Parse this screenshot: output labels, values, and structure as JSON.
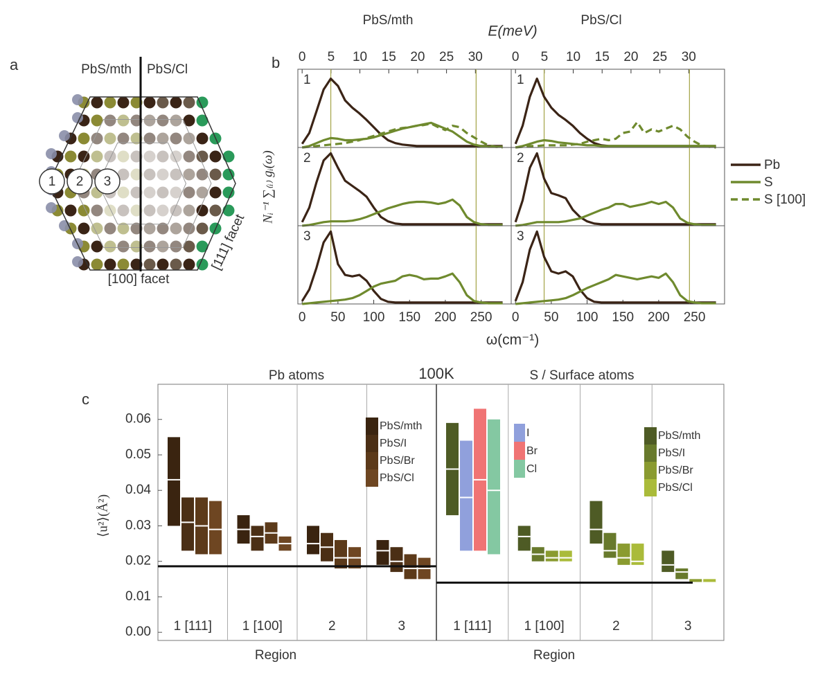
{
  "panel_labels": [
    "a",
    "b",
    "c"
  ],
  "diagram": {
    "left": "PbS/mth",
    "right": "PbS/Cl",
    "regions": [
      "1",
      "2",
      "3"
    ],
    "facet_100": "[100] facet",
    "facet_111": "[111] facet"
  },
  "chart_data": [
    {
      "type": "line",
      "top_axis_label": "E(meV)",
      "x_label": "ω(cm⁻¹)",
      "y_label": "Nᵢ⁻¹ ∑₍ᵢ₎ gᵢ(ω)",
      "x": [
        0,
        10,
        20,
        30,
        40,
        50,
        60,
        70,
        80,
        90,
        100,
        110,
        120,
        130,
        140,
        150,
        160,
        170,
        180,
        190,
        200,
        210,
        220,
        230,
        240,
        250,
        260,
        270,
        280
      ],
      "xlim": [
        -6,
        292
      ],
      "xticks": [
        0,
        50,
        100,
        150,
        200,
        250
      ],
      "x2lim": [
        -0.74,
        36.2
      ],
      "x2ticks": [
        0,
        5,
        10,
        15,
        20,
        25,
        30
      ],
      "ylim": [
        0,
        1.08
      ],
      "vlines": [
        40,
        243
      ],
      "vline_color": "#a8a850",
      "series": [
        {
          "name": "Pb",
          "color": "#3b2416",
          "dash": false
        },
        {
          "name": "S",
          "color": "#6f8a2e",
          "dash": false
        },
        {
          "name": "S [100]",
          "color": "#6f8a2e",
          "dash": true
        }
      ],
      "columns": [
        {
          "title": "PbS/mth",
          "panels": [
            {
              "label": "1",
              "values": [
                [
                  0.05,
                  0.2,
                  0.5,
                  0.8,
                  0.95,
                  0.85,
                  0.65,
                  0.55,
                  0.47,
                  0.38,
                  0.28,
                  0.18,
                  0.1,
                  0.06,
                  0.04,
                  0.03,
                  0.02,
                  0.02,
                  0.02,
                  0.02,
                  0.02,
                  0.02,
                  0.02,
                  0.02,
                  0.02,
                  0.02,
                  0.02,
                  0.02,
                  0.02
                ],
                [
                  0,
                  0.02,
                  0.06,
                  0.1,
                  0.13,
                  0.12,
                  0.1,
                  0.1,
                  0.11,
                  0.12,
                  0.14,
                  0.17,
                  0.2,
                  0.23,
                  0.26,
                  0.28,
                  0.3,
                  0.32,
                  0.34,
                  0.3,
                  0.26,
                  0.22,
                  0.15,
                  0.08,
                  0.04,
                  0.02,
                  0.01,
                  0.01,
                  0.01
                ],
                [
                  0,
                  0.01,
                  0.02,
                  0.03,
                  0.04,
                  0.05,
                  0.06,
                  0.08,
                  0.1,
                  0.13,
                  0.16,
                  0.19,
                  0.22,
                  0.25,
                  0.27,
                  0.28,
                  0.3,
                  0.31,
                  0.33,
                  0.28,
                  0.24,
                  0.3,
                  0.28,
                  0.2,
                  0.14,
                  0.08,
                  0.03,
                  0.01,
                  0
                ]
              ]
            },
            {
              "label": "2",
              "values": [
                [
                  0.05,
                  0.25,
                  0.6,
                  0.9,
                  1.0,
                  0.8,
                  0.62,
                  0.55,
                  0.48,
                  0.4,
                  0.25,
                  0.12,
                  0.06,
                  0.03,
                  0.02,
                  0.02,
                  0.02,
                  0.02,
                  0.02,
                  0.02,
                  0.02,
                  0.02,
                  0.02,
                  0.02,
                  0.02,
                  0.02,
                  0.02,
                  0.02,
                  0.02
                ],
                [
                  0,
                  0.01,
                  0.03,
                  0.05,
                  0.06,
                  0.06,
                  0.06,
                  0.07,
                  0.09,
                  0.12,
                  0.16,
                  0.2,
                  0.24,
                  0.27,
                  0.3,
                  0.32,
                  0.33,
                  0.33,
                  0.32,
                  0.3,
                  0.32,
                  0.36,
                  0.28,
                  0.12,
                  0.05,
                  0.02,
                  0.01,
                  0.01,
                  0.01
                ]
              ]
            },
            {
              "label": "3",
              "values": [
                [
                  0.04,
                  0.2,
                  0.5,
                  0.85,
                  1.0,
                  0.55,
                  0.4,
                  0.38,
                  0.4,
                  0.32,
                  0.18,
                  0.07,
                  0.03,
                  0.02,
                  0.02,
                  0.02,
                  0.02,
                  0.02,
                  0.02,
                  0.02,
                  0.02,
                  0.02,
                  0.02,
                  0.02,
                  0.02,
                  0.02,
                  0.02,
                  0.02,
                  0.02
                ],
                [
                  0,
                  0.01,
                  0.02,
                  0.03,
                  0.04,
                  0.05,
                  0.06,
                  0.08,
                  0.12,
                  0.18,
                  0.24,
                  0.28,
                  0.3,
                  0.32,
                  0.38,
                  0.4,
                  0.38,
                  0.34,
                  0.35,
                  0.35,
                  0.38,
                  0.42,
                  0.3,
                  0.12,
                  0.04,
                  0.02,
                  0.01,
                  0.01,
                  0.01
                ]
              ]
            }
          ]
        },
        {
          "title": "PbS/Cl",
          "panels": [
            {
              "label": "1",
              "values": [
                [
                  0.05,
                  0.3,
                  0.7,
                  0.95,
                  0.7,
                  0.55,
                  0.45,
                  0.38,
                  0.3,
                  0.2,
                  0.12,
                  0.06,
                  0.03,
                  0.02,
                  0.02,
                  0.02,
                  0.02,
                  0.02,
                  0.02,
                  0.02,
                  0.02,
                  0.02,
                  0.02,
                  0.02,
                  0.02,
                  0.02,
                  0.02,
                  0.02,
                  0.02
                ],
                [
                  0,
                  0.02,
                  0.05,
                  0.08,
                  0.1,
                  0.09,
                  0.07,
                  0.06,
                  0.05,
                  0.04,
                  0.03,
                  0.03,
                  0.02,
                  0.02,
                  0.02,
                  0.02,
                  0.02,
                  0.02,
                  0.02,
                  0.02,
                  0.02,
                  0.02,
                  0.02,
                  0.02,
                  0.02,
                  0.02,
                  0.02,
                  0.02,
                  0.02
                ],
                [
                  0,
                  0.01,
                  0.02,
                  0.02,
                  0.03,
                  0.03,
                  0.03,
                  0.03,
                  0.04,
                  0.05,
                  0.08,
                  0.1,
                  0.12,
                  0.1,
                  0.12,
                  0.2,
                  0.22,
                  0.35,
                  0.2,
                  0.25,
                  0.22,
                  0.26,
                  0.3,
                  0.25,
                  0.15,
                  0.08,
                  0.03,
                  0.01,
                  0
                ]
              ]
            },
            {
              "label": "2",
              "values": [
                [
                  0.05,
                  0.35,
                  0.8,
                  1.0,
                  0.65,
                  0.45,
                  0.42,
                  0.38,
                  0.22,
                  0.12,
                  0.06,
                  0.03,
                  0.02,
                  0.02,
                  0.02,
                  0.02,
                  0.02,
                  0.02,
                  0.02,
                  0.02,
                  0.02,
                  0.02,
                  0.02,
                  0.02,
                  0.02,
                  0.02,
                  0.02,
                  0.02,
                  0.02
                ],
                [
                  0,
                  0.01,
                  0.03,
                  0.05,
                  0.05,
                  0.05,
                  0.05,
                  0.06,
                  0.08,
                  0.1,
                  0.14,
                  0.18,
                  0.22,
                  0.25,
                  0.3,
                  0.3,
                  0.26,
                  0.28,
                  0.3,
                  0.33,
                  0.3,
                  0.33,
                  0.25,
                  0.1,
                  0.04,
                  0.02,
                  0.01,
                  0.01,
                  0.01
                ]
              ]
            },
            {
              "label": "3",
              "values": [
                [
                  0.04,
                  0.3,
                  0.75,
                  1.0,
                  0.65,
                  0.45,
                  0.42,
                  0.45,
                  0.38,
                  0.2,
                  0.08,
                  0.03,
                  0.02,
                  0.02,
                  0.02,
                  0.02,
                  0.02,
                  0.02,
                  0.02,
                  0.02,
                  0.02,
                  0.02,
                  0.02,
                  0.02,
                  0.02,
                  0.02,
                  0.02,
                  0.02,
                  0.02
                ],
                [
                  0,
                  0.01,
                  0.02,
                  0.03,
                  0.04,
                  0.05,
                  0.06,
                  0.08,
                  0.12,
                  0.17,
                  0.22,
                  0.26,
                  0.3,
                  0.34,
                  0.4,
                  0.38,
                  0.36,
                  0.34,
                  0.36,
                  0.38,
                  0.36,
                  0.42,
                  0.3,
                  0.12,
                  0.04,
                  0.02,
                  0.01,
                  0.01,
                  0.01
                ]
              ]
            }
          ]
        }
      ]
    },
    {
      "type": "range-bar",
      "title": "100K",
      "y_label": "⟨u²⟩(Å²)",
      "ylim": [
        -0.0023,
        0.0699
      ],
      "yticks": [
        {
          "value": 0,
          "label": "0.00"
        },
        0.01,
        0.02,
        0.03,
        0.04,
        0.05,
        0.06
      ],
      "groups": [
        {
          "title": "Pb atoms",
          "x_label": "Region",
          "categories": [
            "1 [111]",
            "1 [100]",
            "2",
            "3"
          ],
          "reference": 0.0186,
          "series": [
            {
              "name": "PbS/mth",
              "color": "#3a2410",
              "low": [
                0.03,
                0.025,
                0.022,
                0.019
              ],
              "median": [
                0.043,
                0.029,
                0.025,
                0.023
              ],
              "high": [
                0.055,
                0.033,
                0.03,
                0.026
              ]
            },
            {
              "name": "PbS/I",
              "color": "#4b2f15",
              "low": [
                0.023,
                0.023,
                0.02,
                0.017
              ],
              "median": [
                0.031,
                0.027,
                0.024,
                0.02
              ],
              "high": [
                0.038,
                0.03,
                0.028,
                0.024
              ]
            },
            {
              "name": "PbS/Br",
              "color": "#5c3a1a",
              "low": [
                0.022,
                0.025,
                0.018,
                0.015
              ],
              "median": [
                0.03,
                0.028,
                0.021,
                0.018
              ],
              "high": [
                0.038,
                0.031,
                0.026,
                0.022
              ]
            },
            {
              "name": "PbS/Cl",
              "color": "#6e4622",
              "low": [
                0.022,
                0.023,
                0.018,
                0.015
              ],
              "median": [
                0.029,
                0.025,
                0.021,
                0.018
              ],
              "high": [
                0.037,
                0.027,
                0.024,
                0.021
              ]
            }
          ],
          "surface_series": []
        },
        {
          "title": "S / Surface atoms",
          "x_label": "Region",
          "categories": [
            "1 [111]",
            "1 [100]",
            "2",
            "3"
          ],
          "reference": 0.014,
          "series": [
            {
              "name": "PbS/mth",
              "color": "#4e5b25",
              "low": [
                0.033,
                0.023,
                0.025,
                0.017
              ],
              "median": [
                0.046,
                0.027,
                0.029,
                0.019
              ],
              "high": [
                0.059,
                0.03,
                0.037,
                0.023
              ]
            },
            {
              "name": "PbS/I",
              "color": "#687a2c",
              "low": [
                null,
                0.02,
                0.021,
                0.015
              ],
              "median": [
                null,
                0.022,
                0.023,
                0.017
              ],
              "high": [
                null,
                0.024,
                0.028,
                0.018
              ]
            },
            {
              "name": "PbS/Br",
              "color": "#8a9b30",
              "low": [
                null,
                0.02,
                0.019,
                0.014
              ],
              "median": [
                null,
                0.021,
                0.021,
                0.014
              ],
              "high": [
                null,
                0.023,
                0.025,
                0.015
              ]
            },
            {
              "name": "PbS/Cl",
              "color": "#aabb3a",
              "low": [
                null,
                0.02,
                0.019,
                0.014
              ],
              "median": [
                null,
                0.021,
                0.02,
                0.014
              ],
              "high": [
                null,
                0.023,
                0.025,
                0.015
              ]
            }
          ],
          "surface_series": [
            {
              "name": "I",
              "color": "#90a0dc",
              "low": [
                0.023,
                null,
                null,
                null
              ],
              "median": [
                0.038,
                null,
                null,
                null
              ],
              "high": [
                0.054,
                null,
                null,
                null
              ]
            },
            {
              "name": "Br",
              "color": "#f07474",
              "low": [
                0.023,
                null,
                null,
                null
              ],
              "median": [
                0.043,
                null,
                null,
                null
              ],
              "high": [
                0.063,
                null,
                null,
                null
              ]
            },
            {
              "name": "Cl",
              "color": "#84c8a2",
              "low": [
                0.022,
                null,
                null,
                null
              ],
              "median": [
                0.04,
                null,
                null,
                null
              ],
              "high": [
                0.06,
                null,
                null,
                null
              ]
            }
          ]
        }
      ]
    }
  ]
}
